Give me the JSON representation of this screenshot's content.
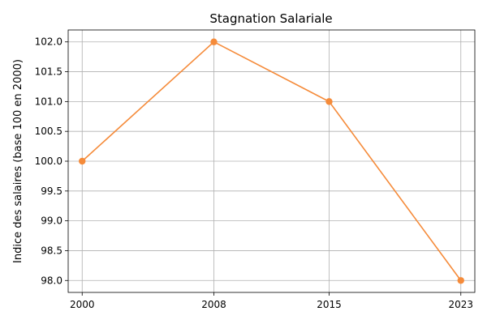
{
  "chart_data": {
    "type": "line",
    "title": "Stagnation Salariale",
    "xlabel": "",
    "ylabel": "Indice des salaires (base 100 en 2000)",
    "x": [
      2000,
      2008,
      2015,
      2023
    ],
    "x_ticks": [
      "2000",
      "2008",
      "2015",
      "2023"
    ],
    "y_ticks": [
      "98.0",
      "98.5",
      "99.0",
      "99.5",
      "100.0",
      "100.5",
      "101.0",
      "101.5",
      "102.0"
    ],
    "xlim": [
      1999.15,
      2023.85
    ],
    "ylim": [
      97.8,
      102.2
    ],
    "grid": true,
    "series": [
      {
        "values": [
          100.0,
          102.0,
          101.0,
          98.0
        ],
        "color": "#f58b3a",
        "marker": "circle"
      }
    ]
  }
}
